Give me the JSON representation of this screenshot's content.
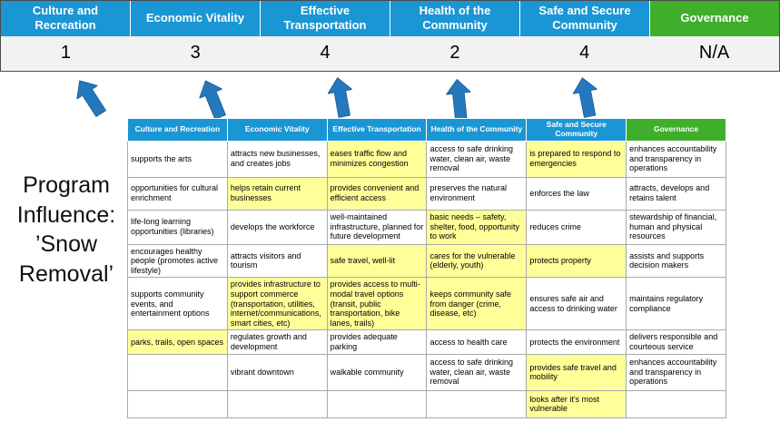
{
  "title": "Program Influence: ’Snow Removal’",
  "colors": {
    "header_blue": "#1A96D4",
    "header_green": "#3FAE2B",
    "highlight_yellow": "#FFFF99",
    "arrow_blue": "#2478BE",
    "score_row_bg": "#F2F2F2"
  },
  "pillars": [
    {
      "label": "Culture and Recreation",
      "score": "1",
      "color": "blue"
    },
    {
      "label": "Economic Vitality",
      "score": "3",
      "color": "blue"
    },
    {
      "label": "Effective Transportation",
      "score": "4",
      "color": "blue"
    },
    {
      "label": "Health of the Community",
      "score": "2",
      "color": "blue"
    },
    {
      "label": "Safe and Secure Community",
      "score": "4",
      "color": "blue"
    },
    {
      "label": "Governance",
      "score": "N/A",
      "color": "green"
    }
  ],
  "matrix": {
    "rows": [
      [
        {
          "text": "supports the arts",
          "highlight": false
        },
        {
          "text": "attracts new businesses, and creates jobs",
          "highlight": false
        },
        {
          "text": "eases traffic flow and minimizes congestion",
          "highlight": true
        },
        {
          "text": "access to safe drinking water, clean air, waste removal",
          "highlight": false
        },
        {
          "text": "is prepared to respond to emergencies",
          "highlight": true
        },
        {
          "text": "enhances accountability and transparency in operations",
          "highlight": false
        }
      ],
      [
        {
          "text": "opportunities for cultural enrichment",
          "highlight": false
        },
        {
          "text": "helps retain current businesses",
          "highlight": true
        },
        {
          "text": "provides convenient and efficient access",
          "highlight": true
        },
        {
          "text": "preserves the natural environment",
          "highlight": false
        },
        {
          "text": "enforces the law",
          "highlight": false
        },
        {
          "text": "attracts, develops and retains talent",
          "highlight": false
        }
      ],
      [
        {
          "text": "life-long learning opportunities (libraries)",
          "highlight": false
        },
        {
          "text": "develops the workforce",
          "highlight": false
        },
        {
          "text": "well-maintained infrastructure, planned for future development",
          "highlight": false
        },
        {
          "text": "basic needs – safety, shelter, food, opportunity to work",
          "highlight": true
        },
        {
          "text": "reduces crime",
          "highlight": false
        },
        {
          "text": "stewardship of financial, human and physical resources",
          "highlight": false
        }
      ],
      [
        {
          "text": "encourages healthy people (promotes active lifestyle)",
          "highlight": false
        },
        {
          "text": "attracts visitors and tourism",
          "highlight": false
        },
        {
          "text": "safe travel, well-lit",
          "highlight": true
        },
        {
          "text": "cares for the vulnerable (elderly, youth)",
          "highlight": true
        },
        {
          "text": "protects property",
          "highlight": true
        },
        {
          "text": "assists and supports decision makers",
          "highlight": false
        }
      ],
      [
        {
          "text": "supports community events, and entertainment options",
          "highlight": false
        },
        {
          "text": "provides infrastructure to support commerce (transportation, utilities, internet/communications, smart cities, etc)",
          "highlight": true
        },
        {
          "text": "provides access to multi-modal travel options (transit, public transportation, bike lanes, trails)",
          "highlight": true
        },
        {
          "text": "keeps community safe from danger (crime, disease, etc)",
          "highlight": true
        },
        {
          "text": "ensures safe air and access to drinking water",
          "highlight": false
        },
        {
          "text": "maintains regulatory compliance",
          "highlight": false
        }
      ],
      [
        {
          "text": "parks, trails, open spaces",
          "highlight": true
        },
        {
          "text": "regulates growth and development",
          "highlight": false
        },
        {
          "text": "provides adequate parking",
          "highlight": false
        },
        {
          "text": "access to health care",
          "highlight": false
        },
        {
          "text": "protects the environment",
          "highlight": false
        },
        {
          "text": "delivers responsible and courteous service",
          "highlight": false
        }
      ],
      [
        {
          "text": "",
          "highlight": false
        },
        {
          "text": "vibrant downtown",
          "highlight": false
        },
        {
          "text": "walkable community",
          "highlight": false
        },
        {
          "text": "access to safe drinking water, clean air, waste removal",
          "highlight": false
        },
        {
          "text": "provides safe travel and mobility",
          "highlight": true
        },
        {
          "text": "enhances accountability and transparency in operations",
          "highlight": false
        }
      ],
      [
        {
          "text": "",
          "highlight": false
        },
        {
          "text": "",
          "highlight": false
        },
        {
          "text": "",
          "highlight": false
        },
        {
          "text": "",
          "highlight": false
        },
        {
          "text": "looks after it's most vulnerable",
          "highlight": true
        },
        {
          "text": "",
          "highlight": false
        }
      ]
    ]
  }
}
